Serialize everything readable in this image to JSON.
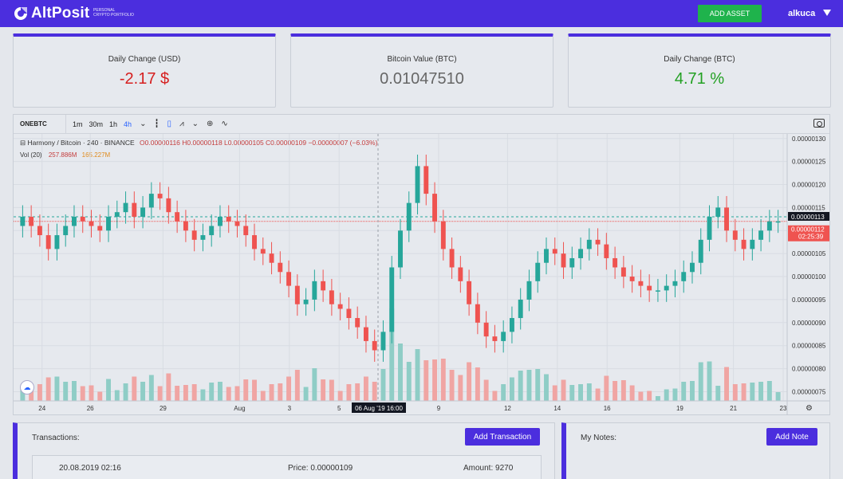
{
  "header": {
    "brand": "AltPosit",
    "brand_sub_line1": "PERSONAL",
    "brand_sub_line2": "CRYPTO PORTFOLIO",
    "add_asset_label": "ADD ASSET",
    "username": "alkuca",
    "bg_color": "#4b2ede",
    "button_color": "#1fb34c"
  },
  "cards": [
    {
      "label": "Daily Change (USD)",
      "value": "-2.17 $",
      "color": "#d61f1f"
    },
    {
      "label": "Bitcoin Value (BTC)",
      "value": "0.01047510",
      "color": "#666666"
    },
    {
      "label": "Daily Change (BTC)",
      "value": "4.71 %",
      "color": "#22a022"
    }
  ],
  "chart_toolbar": {
    "symbol": "ONEBTC",
    "timeframes": [
      "1m",
      "30m",
      "1h",
      "4h"
    ],
    "active_timeframe": "4h",
    "icons": [
      "bar-type-icon",
      "candles-icon",
      "indicators-icon",
      "compare-icon",
      "add-icon",
      "trend-icon",
      "camera-icon"
    ]
  },
  "chart_legend": {
    "title": "Harmony / Bitcoin · 240 · BINANCE",
    "ohlc": "O0.00000116  H0.00000118  L0.00000105  C0.00000109  −0.00000007 (−6.03%)",
    "vol_label": "Vol (20)",
    "vol_value_a": "257.886M",
    "vol_value_b": "165.227M"
  },
  "chart_data": {
    "type": "candlestick",
    "pair": "Harmony / Bitcoin",
    "interval": "240",
    "exchange": "BINANCE",
    "y_ticks": [
      "0.00000130",
      "0.00000125",
      "0.00000120",
      "0.00000115",
      "0.00000110",
      "0.00000105",
      "0.00000100",
      "0.00000095",
      "0.00000090",
      "0.00000085",
      "0.00000080",
      "0.00000075"
    ],
    "ylim": [
      7.3e-07,
      1.31e-06
    ],
    "x_ticks": [
      "24",
      "26",
      "29",
      "Aug",
      "3",
      "5",
      "9",
      "12",
      "14",
      "16",
      "19",
      "21",
      "23"
    ],
    "crosshair_label": "06 Aug '19  16:00",
    "price_label_last": "0.00000113",
    "price_label_current": "0.00000112",
    "countdown": "02:25:39",
    "closes": [
      1.13e-06,
      1.11e-06,
      1.09e-06,
      1.06e-06,
      1.09e-06,
      1.11e-06,
      1.13e-06,
      1.12e-06,
      1.11e-06,
      1.1e-06,
      1.13e-06,
      1.14e-06,
      1.16e-06,
      1.13e-06,
      1.15e-06,
      1.18e-06,
      1.17e-06,
      1.14e-06,
      1.12e-06,
      1.1e-06,
      1.08e-06,
      1.09e-06,
      1.11e-06,
      1.13e-06,
      1.12e-06,
      1.11e-06,
      1.09e-06,
      1.06e-06,
      1.05e-06,
      1.03e-06,
      1.01e-06,
      9.8e-07,
      9.4e-07,
      9.5e-07,
      9.9e-07,
      9.7e-07,
      9.4e-07,
      9.3e-07,
      9.1e-07,
      8.9e-07,
      8.6e-07,
      8.4e-07,
      8.8e-07,
      1.02e-06,
      1.1e-06,
      1.16e-06,
      1.24e-06,
      1.18e-06,
      1.12e-06,
      1.06e-06,
      1.02e-06,
      9.9e-07,
      9.4e-07,
      9e-07,
      8.7e-07,
      8.6e-07,
      8.8e-07,
      9.1e-07,
      9.5e-07,
      9.9e-07,
      1.03e-06,
      1.06e-06,
      1.05e-06,
      1.02e-06,
      1.04e-06,
      1.06e-06,
      1.08e-06,
      1.07e-06,
      1.04e-06,
      1.02e-06,
      1e-06,
      9.9e-07,
      9.8e-07,
      9.7e-07,
      9.7e-07,
      9.8e-07,
      9.9e-07,
      1.01e-06,
      1.03e-06,
      1.08e-06,
      1.13e-06,
      1.15e-06,
      1.1e-06,
      1.08e-06,
      1.06e-06,
      1.08e-06,
      1.1e-06,
      1.12e-06,
      1.12e-06
    ]
  },
  "transactions": {
    "title": "Transactions:",
    "add_label": "Add Transaction",
    "rows": [
      {
        "date": "20.08.2019 02:16",
        "price": "Price: 0.00000109",
        "amount": "Amount: 9270"
      }
    ]
  },
  "notes": {
    "title": "My Notes:",
    "add_label": "Add Note"
  }
}
